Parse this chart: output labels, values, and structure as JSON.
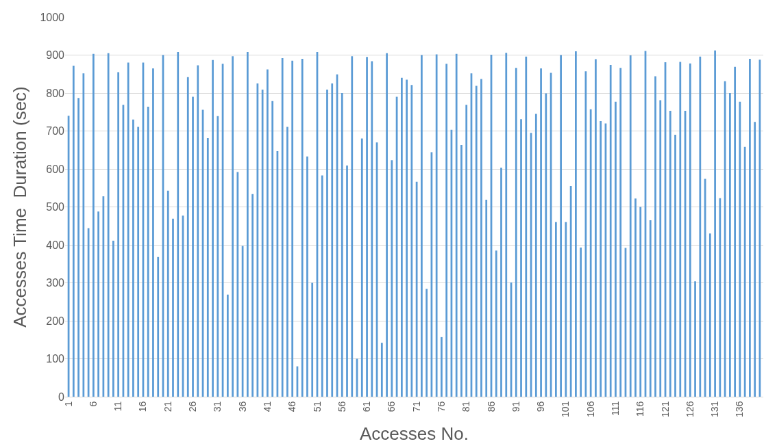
{
  "chart_data": {
    "type": "bar",
    "xlabel": "Accesses No.",
    "ylabel": "Accesses Time  Duration (sec)",
    "categories": [
      "1",
      null,
      null,
      null,
      null,
      "6",
      null,
      null,
      null,
      null,
      "11",
      null,
      null,
      null,
      null,
      "16",
      null,
      null,
      null,
      null,
      "21",
      null,
      null,
      null,
      null,
      "26",
      null,
      null,
      null,
      null,
      "31",
      null,
      null,
      null,
      null,
      "36",
      null,
      null,
      null,
      null,
      "41",
      null,
      null,
      null,
      null,
      "46",
      null,
      null,
      null,
      null,
      "51",
      null,
      null,
      null,
      null,
      "56",
      null,
      null,
      null,
      null,
      "61",
      null,
      null,
      null,
      null,
      "66",
      null,
      null,
      null,
      null,
      "71",
      null,
      null,
      null,
      null,
      "76",
      null,
      null,
      null,
      null,
      "81",
      null,
      null,
      null,
      null,
      "86",
      null,
      null,
      null,
      null,
      "91",
      null,
      null,
      null,
      null,
      "96",
      null,
      null,
      null,
      null,
      "101",
      null,
      null,
      null,
      null,
      "106",
      null,
      null,
      null,
      null,
      "111",
      null,
      null,
      null,
      null,
      "116",
      null,
      null,
      null,
      null,
      "121",
      null,
      null,
      null,
      null,
      "126",
      null,
      null,
      null,
      null,
      "131",
      null,
      null,
      null,
      null,
      "136",
      null,
      null,
      null,
      null
    ],
    "values": [
      740,
      872,
      787,
      852,
      444,
      903,
      488,
      528,
      905,
      411,
      855,
      769,
      880,
      730,
      711,
      880,
      764,
      865,
      368,
      900,
      543,
      469,
      908,
      477,
      842,
      790,
      873,
      756,
      681,
      887,
      739,
      877,
      269,
      897,
      592,
      397,
      908,
      534,
      825,
      809,
      862,
      779,
      647,
      892,
      711,
      885,
      80,
      890,
      633,
      300,
      908,
      583,
      809,
      825,
      849,
      800,
      609,
      897,
      100,
      680,
      895,
      884,
      670,
      142,
      905,
      623,
      790,
      840,
      835,
      821,
      566,
      900,
      284,
      644,
      902,
      157,
      877,
      703,
      903,
      663,
      769,
      852,
      819,
      837,
      519,
      901,
      385,
      603,
      906,
      301,
      866,
      731,
      896,
      695,
      745,
      865,
      799,
      853,
      460,
      900,
      460,
      555,
      910,
      393,
      857,
      757,
      889,
      726,
      720,
      874,
      777,
      866,
      392,
      899,
      522,
      500,
      911,
      465,
      844,
      781,
      881,
      753,
      690,
      882,
      753,
      878,
      304,
      896,
      574,
      430,
      912,
      523,
      831,
      800,
      869,
      777,
      658,
      890,
      724,
      888
    ],
    "color": "#5b9bd5",
    "ylim": [
      0,
      1000
    ],
    "yticks": [
      0,
      100,
      200,
      300,
      400,
      500,
      600,
      700,
      800,
      900,
      1000
    ],
    "grid": "y",
    "legend": false
  }
}
